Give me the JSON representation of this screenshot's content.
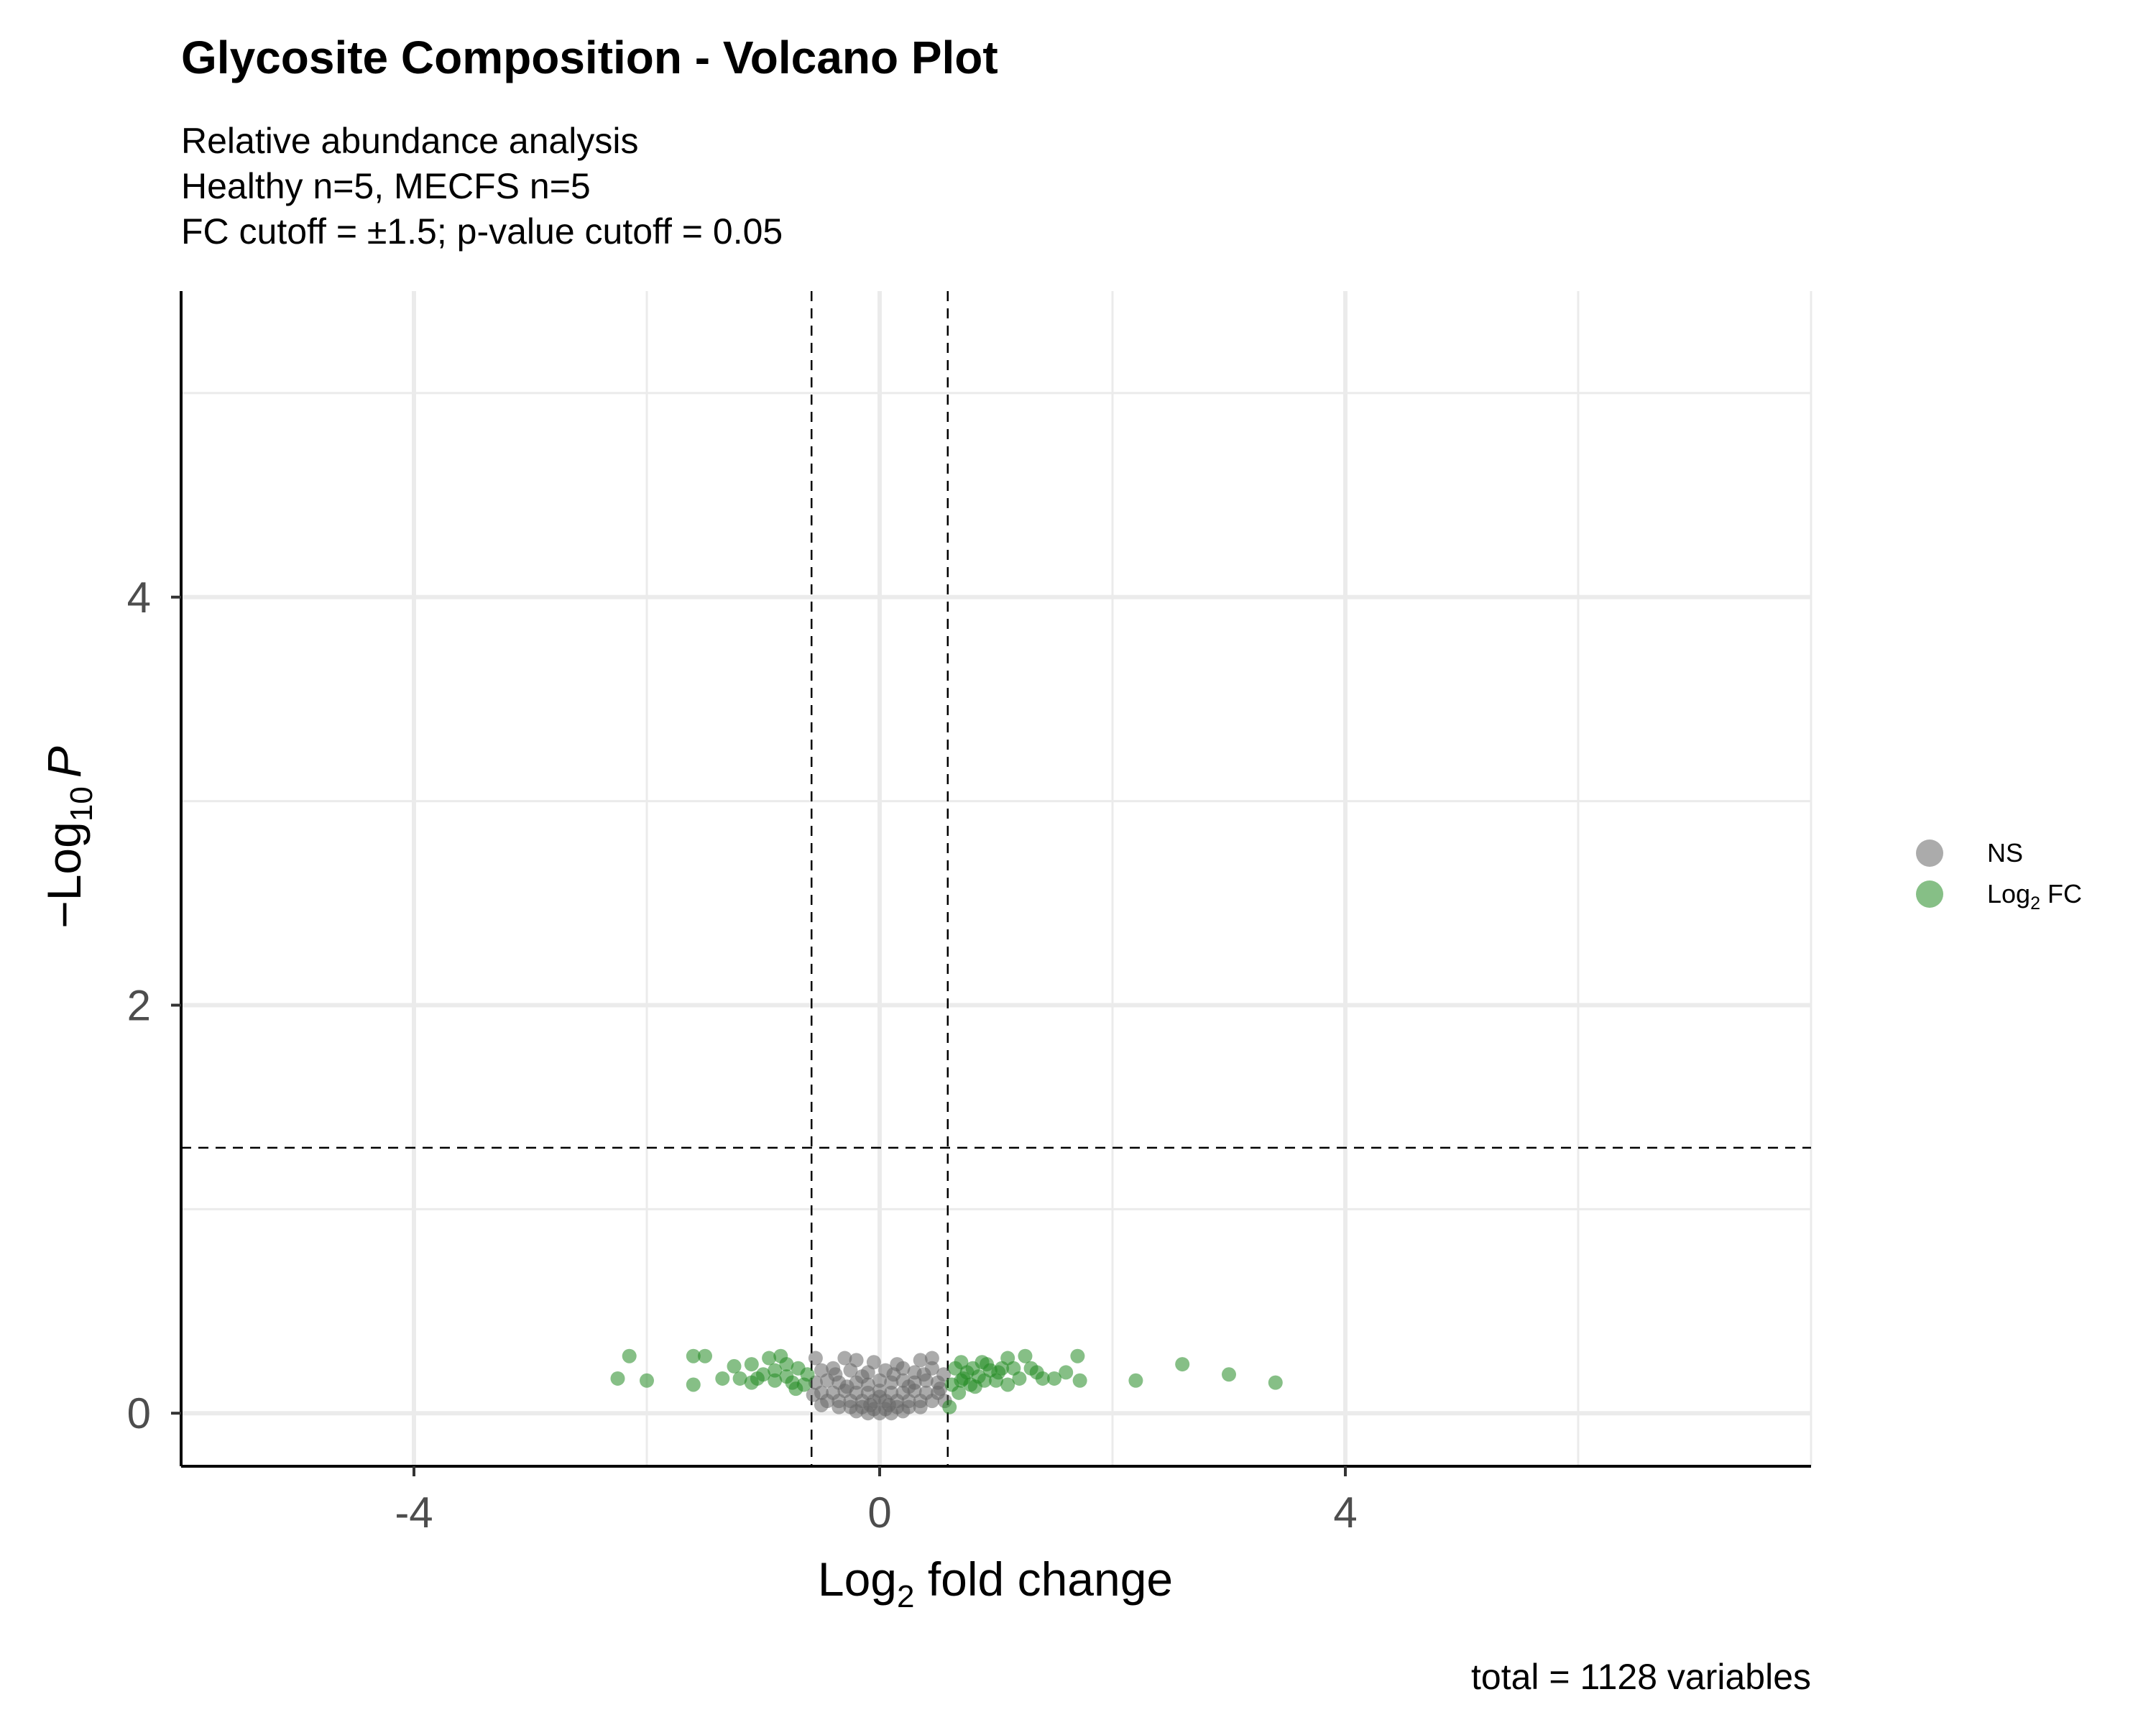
{
  "chart_data": {
    "type": "scatter",
    "title": "Glycosite Composition - Volcano Plot",
    "subtitle": [
      "Relative abundance analysis",
      "Healthy n=5, MECFS n=5",
      "FC cutoff = ±1.5; p-value cutoff = 0.05"
    ],
    "xlabel": {
      "base": "Log",
      "sub": "2",
      "rest": " fold change"
    },
    "ylabel": {
      "pre": "−Log",
      "sub": "10",
      "italic": "P"
    },
    "caption": "total = 1128 variables",
    "xlim": [
      -6.0,
      8.0
    ],
    "ylim": [
      -0.26,
      5.5
    ],
    "x_ticks": [
      -4,
      0,
      4
    ],
    "x_tick_labels": [
      "-4",
      "0",
      "4"
    ],
    "y_ticks": [
      0,
      2,
      4
    ],
    "y_tick_labels": [
      "0",
      "2",
      "4"
    ],
    "grid": true,
    "cutoffs": {
      "fc_log2": [
        -0.585,
        0.585
      ],
      "neg_log10_p": 1.301
    },
    "legend": {
      "position": "right",
      "entries": [
        {
          "label": "NS",
          "color": "#666666"
        },
        {
          "label_base": "Log",
          "label_sub": "2",
          "label_rest": " FC",
          "color": "#228B22"
        }
      ]
    },
    "series": [
      {
        "name": "NS",
        "color": "#666666",
        "points": [
          [
            -0.55,
            0.27
          ],
          [
            -0.3,
            0.27
          ],
          [
            -0.2,
            0.26
          ],
          [
            -0.05,
            0.25
          ],
          [
            0.15,
            0.24
          ],
          [
            0.35,
            0.26
          ],
          [
            0.45,
            0.27
          ],
          [
            -0.5,
            0.21
          ],
          [
            -0.4,
            0.22
          ],
          [
            -0.25,
            0.21
          ],
          [
            -0.1,
            0.2
          ],
          [
            0.05,
            0.21
          ],
          [
            0.2,
            0.22
          ],
          [
            0.3,
            0.2
          ],
          [
            0.45,
            0.22
          ],
          [
            -0.55,
            0.15
          ],
          [
            -0.45,
            0.16
          ],
          [
            -0.35,
            0.15
          ],
          [
            -0.2,
            0.15
          ],
          [
            -0.1,
            0.14
          ],
          [
            0.0,
            0.16
          ],
          [
            0.1,
            0.15
          ],
          [
            0.2,
            0.16
          ],
          [
            0.3,
            0.15
          ],
          [
            0.4,
            0.16
          ],
          [
            0.5,
            0.15
          ],
          [
            -0.5,
            0.1
          ],
          [
            -0.4,
            0.1
          ],
          [
            -0.3,
            0.11
          ],
          [
            -0.2,
            0.1
          ],
          [
            -0.1,
            0.1
          ],
          [
            0.0,
            0.11
          ],
          [
            0.1,
            0.1
          ],
          [
            0.2,
            0.1
          ],
          [
            0.3,
            0.11
          ],
          [
            0.4,
            0.1
          ],
          [
            0.5,
            0.1
          ],
          [
            -0.45,
            0.06
          ],
          [
            -0.35,
            0.06
          ],
          [
            -0.25,
            0.06
          ],
          [
            -0.15,
            0.06
          ],
          [
            -0.05,
            0.06
          ],
          [
            0.05,
            0.06
          ],
          [
            0.15,
            0.06
          ],
          [
            0.25,
            0.06
          ],
          [
            0.35,
            0.06
          ],
          [
            0.45,
            0.06
          ],
          [
            -0.35,
            0.03
          ],
          [
            -0.25,
            0.03
          ],
          [
            -0.15,
            0.03
          ],
          [
            -0.05,
            0.02
          ],
          [
            0.05,
            0.02
          ],
          [
            0.15,
            0.03
          ],
          [
            0.25,
            0.03
          ],
          [
            0.35,
            0.03
          ],
          [
            -0.2,
            0.01
          ],
          [
            -0.1,
            0.0
          ],
          [
            0.0,
            0.0
          ],
          [
            0.1,
            0.0
          ],
          [
            0.2,
            0.01
          ],
          [
            -0.38,
            0.19
          ],
          [
            0.38,
            0.19
          ],
          [
            -0.15,
            0.18
          ],
          [
            0.12,
            0.19
          ],
          [
            0.25,
            0.13
          ],
          [
            -0.28,
            0.13
          ],
          [
            0.0,
            0.08
          ],
          [
            0.08,
            0.04
          ],
          [
            -0.08,
            0.04
          ],
          [
            0.55,
            0.19
          ],
          [
            -0.57,
            0.09
          ],
          [
            0.56,
            0.06
          ],
          [
            -0.5,
            0.04
          ],
          [
            0.52,
            0.12
          ]
        ]
      },
      {
        "name": "Log2 FC",
        "color": "#228B22",
        "points": [
          [
            -2.15,
            0.28
          ],
          [
            -2.25,
            0.17
          ],
          [
            -2.0,
            0.16
          ],
          [
            -1.6,
            0.28
          ],
          [
            -1.5,
            0.28
          ],
          [
            -1.6,
            0.14
          ],
          [
            -1.35,
            0.17
          ],
          [
            -1.25,
            0.23
          ],
          [
            -1.2,
            0.17
          ],
          [
            -1.1,
            0.24
          ],
          [
            -1.05,
            0.17
          ],
          [
            -1.1,
            0.15
          ],
          [
            -0.95,
            0.27
          ],
          [
            -0.9,
            0.21
          ],
          [
            -0.85,
            0.28
          ],
          [
            -0.8,
            0.24
          ],
          [
            -0.8,
            0.18
          ],
          [
            -0.75,
            0.15
          ],
          [
            -0.7,
            0.22
          ],
          [
            -0.65,
            0.14
          ],
          [
            -0.62,
            0.19
          ],
          [
            -0.9,
            0.16
          ],
          [
            -0.72,
            0.12
          ],
          [
            -1.0,
            0.19
          ],
          [
            0.6,
            0.03
          ],
          [
            0.62,
            0.14
          ],
          [
            0.65,
            0.22
          ],
          [
            0.7,
            0.25
          ],
          [
            0.72,
            0.17
          ],
          [
            0.75,
            0.2
          ],
          [
            0.78,
            0.14
          ],
          [
            0.8,
            0.22
          ],
          [
            0.85,
            0.18
          ],
          [
            0.88,
            0.25
          ],
          [
            0.9,
            0.16
          ],
          [
            0.95,
            0.21
          ],
          [
            1.0,
            0.16
          ],
          [
            1.05,
            0.22
          ],
          [
            1.1,
            0.27
          ],
          [
            1.15,
            0.22
          ],
          [
            1.2,
            0.17
          ],
          [
            1.25,
            0.28
          ],
          [
            1.3,
            0.22
          ],
          [
            1.35,
            0.2
          ],
          [
            1.4,
            0.17
          ],
          [
            1.5,
            0.17
          ],
          [
            1.6,
            0.2
          ],
          [
            1.7,
            0.28
          ],
          [
            1.72,
            0.16
          ],
          [
            1.1,
            0.14
          ],
          [
            2.2,
            0.16
          ],
          [
            2.6,
            0.24
          ],
          [
            3.0,
            0.19
          ],
          [
            3.4,
            0.15
          ],
          [
            0.68,
            0.1
          ],
          [
            0.82,
            0.13
          ],
          [
            0.92,
            0.24
          ],
          [
            1.02,
            0.2
          ],
          [
            0.7,
            0.16
          ]
        ]
      }
    ]
  }
}
